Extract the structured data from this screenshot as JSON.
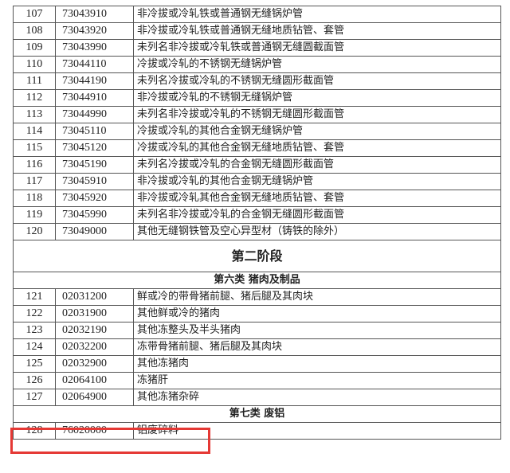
{
  "rows_part1": [
    {
      "no": "107",
      "code": "73043910",
      "desc": "非冷拔或冷轧铁或普通钢无缝锅炉管"
    },
    {
      "no": "108",
      "code": "73043920",
      "desc": "非冷拔或冷轧铁或普通钢无缝地质钻管、套管"
    },
    {
      "no": "109",
      "code": "73043990",
      "desc": "未列名非冷拔或冷轧铁或普通钢无缝圆截面管"
    },
    {
      "no": "110",
      "code": "73044110",
      "desc": "冷拔或冷轧的不锈钢无缝锅炉管"
    },
    {
      "no": "111",
      "code": "73044190",
      "desc": "未列名冷拔或冷轧的不锈钢无缝圆形截面管"
    },
    {
      "no": "112",
      "code": "73044910",
      "desc": "非冷拔或冷轧的不锈钢无缝锅炉管"
    },
    {
      "no": "113",
      "code": "73044990",
      "desc": "未列名非冷拔或冷轧的不锈钢无缝圆形截面管"
    },
    {
      "no": "114",
      "code": "73045110",
      "desc": "冷拔或冷轧的其他合金钢无缝锅炉管"
    },
    {
      "no": "115",
      "code": "73045120",
      "desc": "冷拔或冷轧的其他合金钢无缝地质钻管、套管"
    },
    {
      "no": "116",
      "code": "73045190",
      "desc": "未列名冷拔或冷轧的合金钢无缝圆形截面管"
    },
    {
      "no": "117",
      "code": "73045910",
      "desc": "非冷拔或冷轧的其他合金钢无缝锅炉管"
    },
    {
      "no": "118",
      "code": "73045920",
      "desc": "非冷拔或冷轧其他合金钢无缝地质钻管、套管"
    },
    {
      "no": "119",
      "code": "73045990",
      "desc": "未列名非冷拔或冷轧的合金钢无缝圆形截面管"
    },
    {
      "no": "120",
      "code": "73049000",
      "desc": "其他无缝钢铁管及空心异型材（铸铁的除外）"
    }
  ],
  "stage_title": "第二阶段",
  "category6": "第六类  猪肉及制品",
  "rows_part2": [
    {
      "no": "121",
      "code": "02031200",
      "desc": "鲜或冷的带骨猪前腿、猪后腿及其肉块"
    },
    {
      "no": "122",
      "code": "02031900",
      "desc": "其他鲜或冷的猪肉"
    },
    {
      "no": "123",
      "code": "02032190",
      "desc": "其他冻整头及半头猪肉"
    },
    {
      "no": "124",
      "code": "02032200",
      "desc": "冻带骨猪前腿、猪后腿及其肉块"
    },
    {
      "no": "125",
      "code": "02032900",
      "desc": "其他冻猪肉"
    },
    {
      "no": "126",
      "code": "02064100",
      "desc": "冻猪肝"
    },
    {
      "no": "127",
      "code": "02064900",
      "desc": "其他冻猪杂碎"
    }
  ],
  "category7": "第七类    废铝",
  "rows_part3": [
    {
      "no": "128",
      "code": "76020000",
      "desc": "铝废碎料"
    }
  ],
  "highlight_color": "#e53935"
}
